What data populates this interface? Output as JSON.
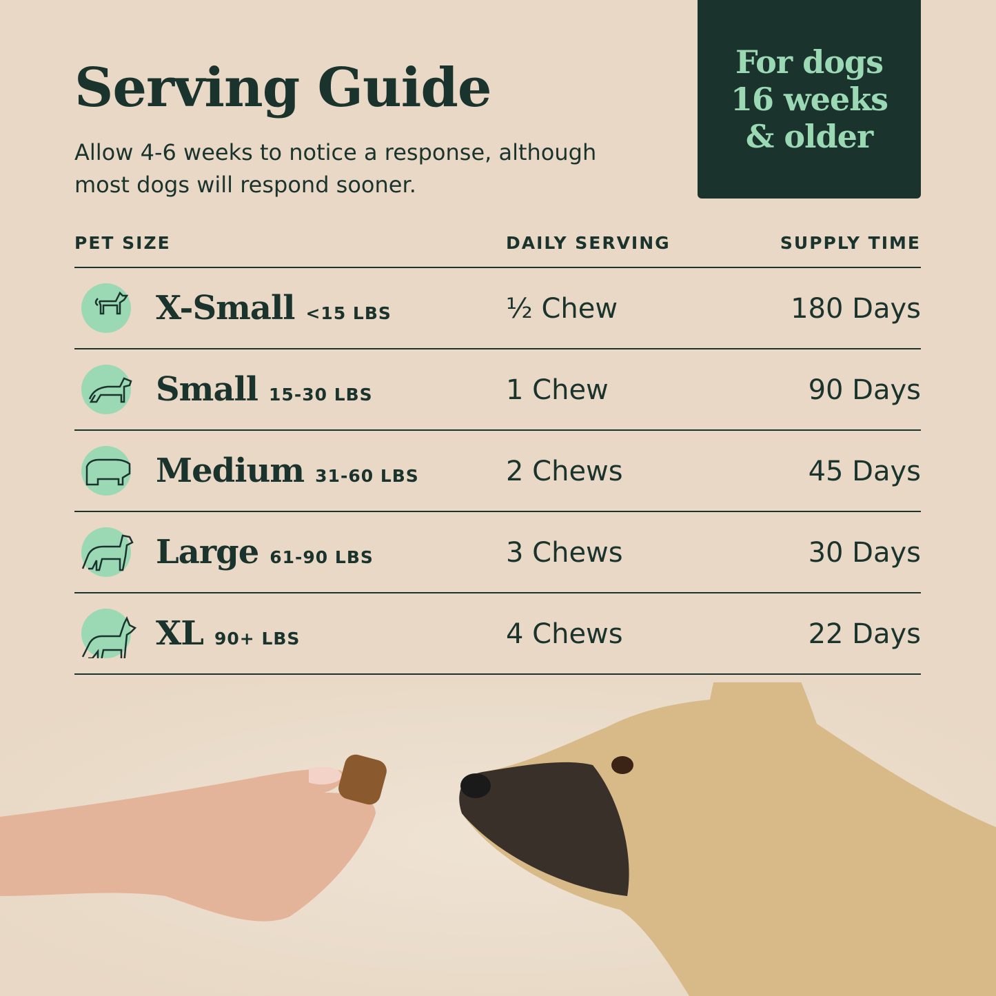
{
  "header": {
    "title": "Serving Guide",
    "subtitle": "Allow 4-6 weeks to notice a response, although most dogs will respond sooner."
  },
  "badge": {
    "text": "For dogs\n16 weeks\n& older"
  },
  "table": {
    "columns": [
      "PET SIZE",
      "DAILY SERVING",
      "SUPPLY TIME"
    ],
    "rows": [
      {
        "icon": "chihuahua-icon",
        "size": "X-Small",
        "weight": "<15 LBS",
        "serving": "½ Chew",
        "supply": "180 Days"
      },
      {
        "icon": "dachshund-icon",
        "size": "Small",
        "weight": "15-30 LBS",
        "serving": "1 Chew",
        "supply": "90 Days"
      },
      {
        "icon": "bulldog-icon",
        "size": "Medium",
        "weight": "31-60 LBS",
        "serving": "2 Chews",
        "supply": "45 Days"
      },
      {
        "icon": "retriever-icon",
        "size": "Large",
        "weight": "61-90 LBS",
        "serving": "3 Chews",
        "supply": "30 Days"
      },
      {
        "icon": "doberman-icon",
        "size": "XL",
        "weight": "90+ LBS",
        "serving": "4 Chews",
        "supply": "22 Days"
      }
    ]
  },
  "colors": {
    "background": "#e8d8c5",
    "dark_green": "#1b332d",
    "mint": "#9bd8b4"
  }
}
